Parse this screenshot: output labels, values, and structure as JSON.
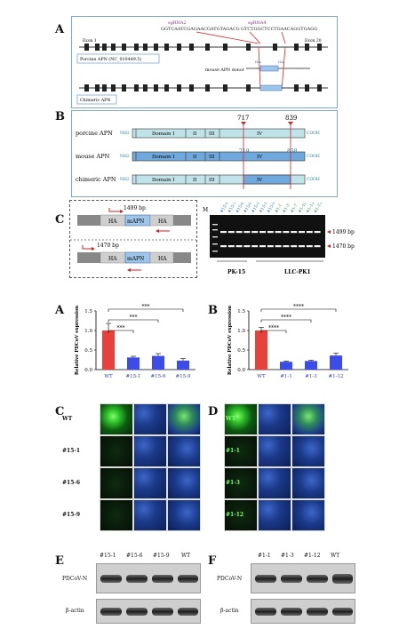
{
  "panel_letters": {
    "top_a": "A",
    "top_b": "B",
    "top_c": "C",
    "bar_a": "A",
    "bar_b": "B",
    "micro_c": "C",
    "micro_d": "D",
    "wb_e": "E",
    "wb_f": "F"
  },
  "gene_diagram": {
    "sgrna2_label": "sgRNA2",
    "sgrna2_seq": "GGTCAATCGAGAACGATGTAGACG",
    "sgrna4_label": "sgRNA4",
    "sgrna4_seq": "GTCTGGCTCCTGAACAGGTGAGG",
    "exon1": "Exon 1",
    "exon20": "Exon 20",
    "porcine_box": "Porcine APN (NC_010449.5)",
    "donor_label": "mouse APN donor",
    "ha_left": "HA",
    "ha_right": "HA",
    "chimeric_box": "Chimeric APN"
  },
  "domain_diagram": {
    "pos_717": "717",
    "pos_839": "839",
    "pos_719": "719",
    "pos_838": "838",
    "nh2": "NH2",
    "cooh": "COOH",
    "rows": [
      {
        "label": "porcine APN",
        "color": "#bfe3e8"
      },
      {
        "label": "mouse APN",
        "color": "#6fa8dc"
      },
      {
        "label": "chimeric APN",
        "color": "#bfe3e8"
      }
    ],
    "domains": [
      "Domain I",
      "II",
      "III",
      "IV"
    ]
  },
  "pcr": {
    "top_bp": "1499 bp",
    "bottom_bp": "1470 bp",
    "ha": "HA",
    "mapn": "mAPN",
    "marker": "M",
    "pk_lanes": [
      "#15-1",
      "#15-3",
      "#15-6",
      "#15-9",
      "#15-11",
      "#15-13",
      "#15-14"
    ],
    "llc_lanes": [
      "#1-1",
      "#1-3",
      "#1-7",
      "#1-10",
      "#1-12",
      "#1-13"
    ],
    "right_top": "1499 bp",
    "right_bottom": "1470 bp",
    "group_left": "PK-15",
    "group_right": "LLC-PK1"
  },
  "chart_data": [
    {
      "type": "bar",
      "categories": [
        "WT",
        "#15-1",
        "#15-6",
        "#15-9"
      ],
      "values": [
        1.0,
        0.31,
        0.35,
        0.23
      ],
      "errors": [
        0.18,
        0.03,
        0.06,
        0.05
      ],
      "colors": [
        "#e8413b",
        "#3b4ce8",
        "#3b4ce8",
        "#3b4ce8"
      ],
      "ylabel": "Relative PDCoV expression",
      "ylim": [
        0,
        1.5
      ],
      "yticks": [
        "0.0",
        "0.5",
        "1.0",
        "1.5"
      ],
      "significance": [
        "***",
        "***",
        "***"
      ]
    },
    {
      "type": "bar",
      "categories": [
        "WT",
        "#1-1",
        "#1-3",
        "#1-12"
      ],
      "values": [
        1.0,
        0.2,
        0.22,
        0.36
      ],
      "errors": [
        0.08,
        0.02,
        0.02,
        0.06
      ],
      "colors": [
        "#e8413b",
        "#3b4ce8",
        "#3b4ce8",
        "#3b4ce8"
      ],
      "ylabel": "Relative PDCoV expression",
      "ylim": [
        0,
        1.5
      ],
      "yticks": [
        "0.0",
        "0.5",
        "1.0",
        "1.5"
      ],
      "significance": [
        "****",
        "****",
        "****"
      ]
    }
  ],
  "micro_c": {
    "rows": [
      "WT",
      "#15-1",
      "#15-6",
      "#15-9"
    ]
  },
  "micro_d": {
    "rows": [
      "WT",
      "#1-1",
      "#1-3",
      "#1-12"
    ]
  },
  "wb_e": {
    "lanes": [
      "#15-1",
      "#15-6",
      "#15-9",
      "WT"
    ],
    "row1": "PDCoV-N",
    "row2": "β-actin"
  },
  "wb_f": {
    "lanes": [
      "#1-1",
      "#1-3",
      "#1-12",
      "WT"
    ],
    "row1": "PDCoV-N",
    "row2": "β-actin"
  }
}
